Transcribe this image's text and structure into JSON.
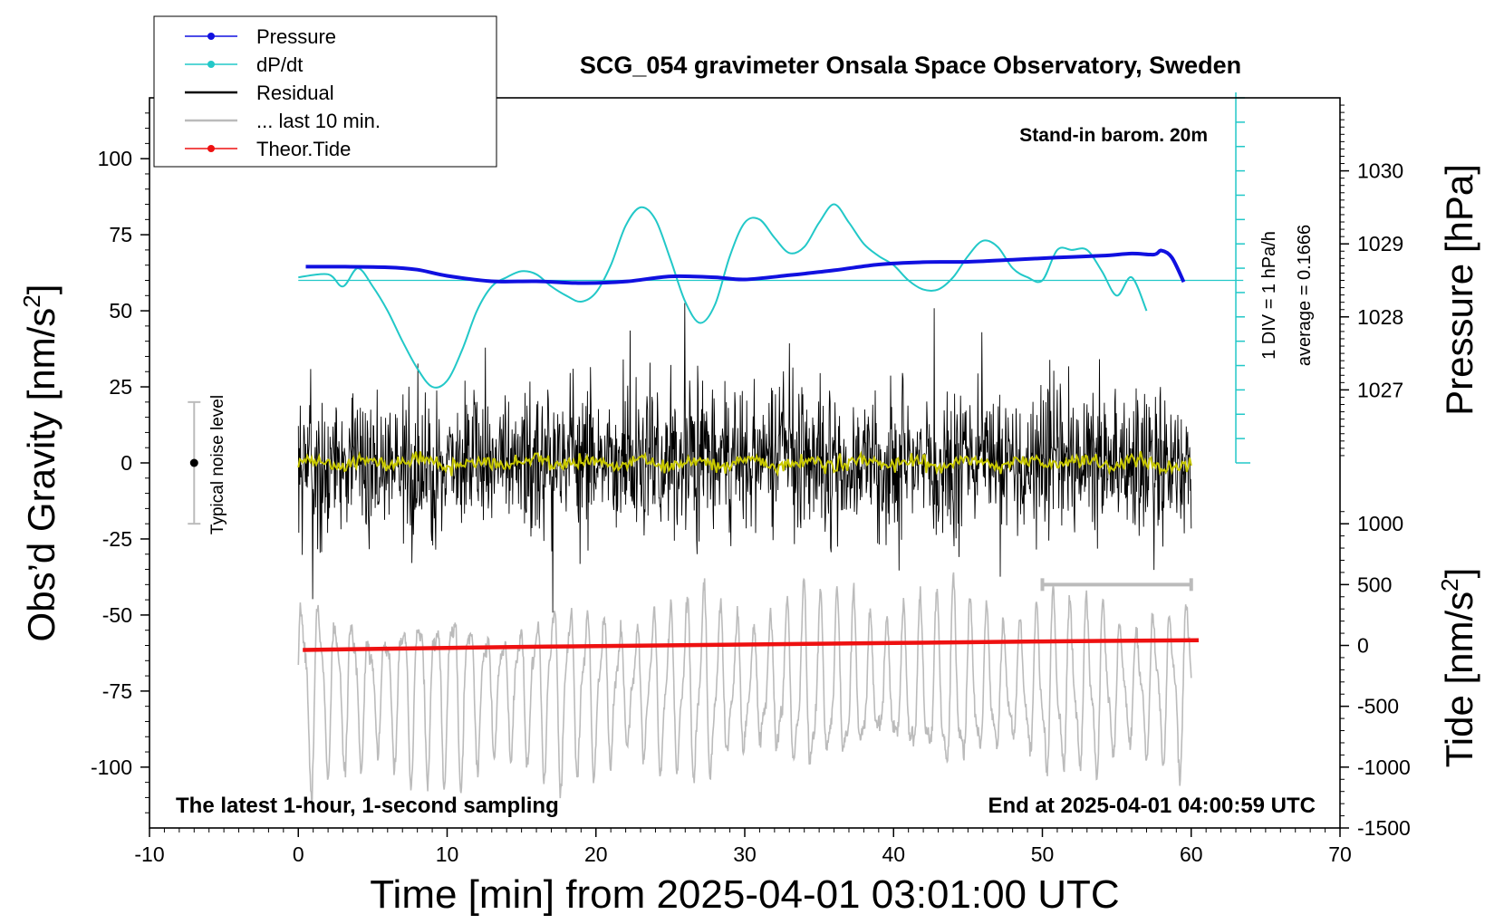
{
  "chart_data": {
    "type": "line",
    "title": "SCG_054 gravimeter Onsala Space Observatory, Sweden",
    "xlabel": "Time [min] from 2025-04-01 03:01:00 UTC",
    "ylabel_left_prefix": "Obs’d Gravity [nm/s",
    "ylabel_right_pressure": "Pressure [hPa]",
    "ylabel_right_tide_prefix": "Tide [nm/s",
    "unit_power": "2",
    "unit_close": "]",
    "xlim": [
      -10,
      70
    ],
    "ylim_left": [
      -120,
      120
    ],
    "x_ticks": [
      "-10",
      "0",
      "10",
      "20",
      "30",
      "40",
      "50",
      "60",
      "70"
    ],
    "x_tick_values": [
      -10,
      0,
      10,
      20,
      30,
      40,
      50,
      60,
      70
    ],
    "y_ticks_left": [
      "-100",
      "-75",
      "-50",
      "-25",
      "0",
      "25",
      "50",
      "75",
      "100"
    ],
    "y_tick_values_left": [
      -100,
      -75,
      -50,
      -25,
      0,
      25,
      50,
      75,
      100
    ],
    "pressure_axis": {
      "ticks": [
        "1027",
        "1028",
        "1029",
        "1030"
      ],
      "values": [
        1027,
        1028,
        1029,
        1030
      ],
      "map": {
        "value_a": 1027,
        "grav_a": 24,
        "value_b": 1030,
        "grav_b": 96
      }
    },
    "tide_axis": {
      "ticks": [
        "-1500",
        "-1000",
        "-500",
        "0",
        "500",
        "1000"
      ],
      "values": [
        -1500,
        -1000,
        -500,
        0,
        500,
        1000
      ],
      "map": {
        "value_a": -1500,
        "grav_a": -120,
        "value_b": 1000,
        "grav_b": -20
      }
    },
    "legend": [
      {
        "label": "Pressure",
        "color": "#1010e0",
        "marker": true
      },
      {
        "label": "dP/dt",
        "color": "#22c8c8",
        "marker": true
      },
      {
        "label": "Residual",
        "color": "#000000",
        "marker": false
      },
      {
        "label": "... last 10 min.",
        "color": "#bbbbbb",
        "marker": false
      },
      {
        "label": "Theor.Tide",
        "color": "#ee1111",
        "marker": true
      }
    ],
    "annotations": {
      "barometer": "Stand-in barom. 20m",
      "div_label": "1 DIV = 1 hPa/h",
      "average_label": "average = 0.1666",
      "noise_label": "Typical noise level",
      "bottom_left": "The latest 1-hour, 1-second sampling",
      "bottom_right": "End at 2025-04-01 04:00:59 UTC"
    },
    "noise_bar": {
      "x": -7,
      "center": 0,
      "half_range": 20
    },
    "last10_bar": {
      "x_start": 50,
      "x_end": 60,
      "y": -40
    },
    "dpdt_reference": {
      "y": 60,
      "x_start": 0,
      "x_end": 63.5
    },
    "dpdt_scale": {
      "x": 63,
      "y_bottom": 0,
      "y_top": 120,
      "divisions": 15
    },
    "series": [
      {
        "name": "Pressure",
        "color": "#1010e0",
        "x": [
          0.5,
          3,
          6,
          8,
          10,
          13,
          16,
          19,
          22,
          25,
          28,
          30,
          33,
          36,
          39,
          42,
          45,
          48,
          51,
          54,
          56,
          57.5,
          58,
          58.7,
          59.5
        ],
        "y": [
          64.5,
          64.5,
          64.3,
          63.5,
          61.5,
          59.7,
          59.7,
          59.1,
          59.6,
          61.3,
          61.0,
          60.3,
          61.7,
          63.3,
          65.2,
          66.0,
          66.1,
          66.8,
          67.5,
          68.1,
          68.8,
          68.5,
          69.8,
          67.5,
          59.5
        ]
      },
      {
        "name": "dP/dt",
        "color": "#22c8c8",
        "x": [
          0,
          2,
          3,
          4,
          5,
          6,
          7,
          8,
          9,
          10,
          11,
          12,
          13,
          14,
          15,
          16,
          17,
          18,
          19,
          20,
          21,
          22,
          23,
          24,
          25,
          26,
          27,
          28,
          29,
          30,
          31,
          32,
          33,
          34,
          35,
          36,
          37,
          38,
          39,
          40,
          41,
          42,
          43,
          44,
          45,
          46,
          47,
          48,
          49,
          50,
          51,
          52,
          53,
          54,
          55,
          56,
          57
        ],
        "y": [
          61,
          62,
          58,
          64,
          58,
          50,
          40,
          31,
          25,
          27,
          37,
          50,
          58,
          61,
          63,
          62,
          58,
          55,
          53,
          56,
          65,
          78,
          84,
          80,
          67,
          53,
          46,
          52,
          68,
          79,
          80,
          74,
          69,
          71,
          79,
          85,
          79,
          72,
          68,
          65,
          60,
          57,
          57,
          61,
          68,
          73,
          71,
          64,
          61,
          60,
          70,
          70,
          70,
          63,
          55,
          61,
          50
        ]
      },
      {
        "name": "Residual",
        "color": "#000000",
        "x_range": [
          0,
          60
        ],
        "envelope": {
          "typical_amplitude": 20,
          "max": 54,
          "min": -57
        },
        "smoothed_color": "#c8c800"
      },
      {
        "name": "... last 10 min.",
        "color": "#bbbbbb",
        "x_range": [
          0,
          60
        ],
        "y_range": [
          -112,
          -36
        ]
      },
      {
        "name": "Theor.Tide",
        "color": "#ee1111",
        "x": [
          0.3,
          10,
          20,
          30,
          40,
          50,
          60.5
        ],
        "y": [
          -61.5,
          -60.8,
          -60.2,
          -59.7,
          -59.2,
          -58.7,
          -58.3
        ]
      }
    ]
  }
}
